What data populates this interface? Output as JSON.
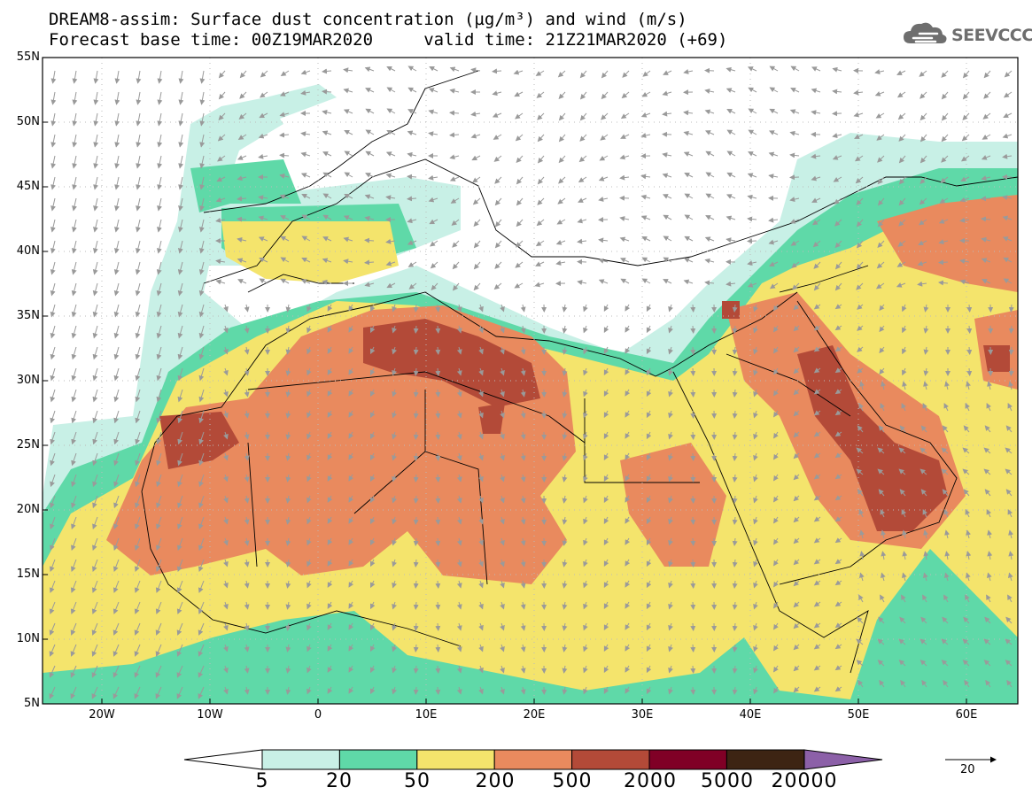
{
  "header": {
    "title_line1": "DREAM8-assim: Surface dust concentration (µg/m³) and wind (m/s)",
    "title_line2": "Forecast base time: 00Z19MAR2020     valid time: 21Z21MAR2020 (+69)"
  },
  "logo": {
    "text": "SEEVCCC",
    "icon": "cloud-icon"
  },
  "axes": {
    "lat_labels": [
      "55N",
      "50N",
      "45N",
      "40N",
      "35N",
      "30N",
      "25N",
      "20N",
      "15N",
      "10N",
      "5N"
    ],
    "lon_labels": [
      "20W",
      "10W",
      "0",
      "10E",
      "20E",
      "30E",
      "40E",
      "50E",
      "60E"
    ],
    "lat_range": [
      5,
      55
    ],
    "lon_range": [
      -25,
      65
    ]
  },
  "colorbar": {
    "labels": [
      "5",
      "20",
      "50",
      "200",
      "500",
      "2000",
      "5000",
      "20000"
    ],
    "colors": [
      "#c8f0e6",
      "#5fd9a8",
      "#f4e46c",
      "#e98a5e",
      "#b34a38",
      "#800026",
      "#3d2413",
      "#8c60a8"
    ],
    "under_color": "#ffffff"
  },
  "wind_reference": {
    "value": "20",
    "units": "m/s"
  },
  "colors": {
    "wind_arrow": "#9a9a9a",
    "coast": "#000000"
  }
}
